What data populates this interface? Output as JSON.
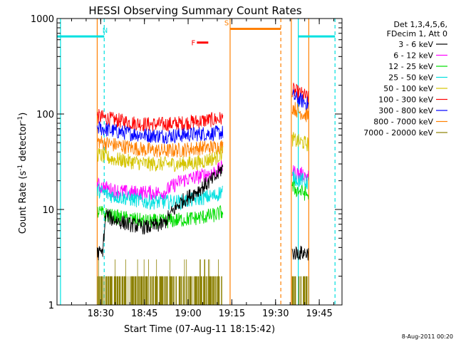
{
  "chart_data": {
    "type": "line",
    "title": "HESSI Observing Summary Count Rates",
    "xlabel": "Start Time (07-Aug-11 18:15:42)",
    "ylabel_main": "Count Rate (s",
    "ylabel_sup1": "-1",
    "ylabel_mid": " detector",
    "ylabel_sup2": "-1",
    "ylabel_end": ")",
    "y_scale": "log",
    "ylim": [
      1,
      1000
    ],
    "xlim_minutes": [
      18.25,
      19.88
    ],
    "x_ticks": [
      {
        "value": 18.5,
        "label": "18:30"
      },
      {
        "value": 18.75,
        "label": "18:45"
      },
      {
        "value": 19.0,
        "label": "19:00"
      },
      {
        "value": 19.25,
        "label": "19:15"
      },
      {
        "value": 19.5,
        "label": "19:30"
      },
      {
        "value": 19.75,
        "label": "19:45"
      }
    ],
    "y_ticks": [
      {
        "value": 1,
        "label": "1"
      },
      {
        "value": 10,
        "label": "10"
      },
      {
        "value": 100,
        "label": "100"
      },
      {
        "value": 1000,
        "label": "1000"
      }
    ],
    "legend_header": [
      "Det 1,3,4,5,6,",
      "FDecim 1, Att 0"
    ],
    "series": [
      {
        "name": "3 - 6 keV",
        "color": "#000000"
      },
      {
        "name": "6 - 12 keV",
        "color": "#ff00ff"
      },
      {
        "name": "12 - 25 keV",
        "color": "#00dd00"
      },
      {
        "name": "25 - 50 keV",
        "color": "#00e0e0"
      },
      {
        "name": "50 - 100 keV",
        "color": "#d4c400"
      },
      {
        "name": "100 - 300 keV",
        "color": "#ff0000"
      },
      {
        "name": "300 - 800 keV",
        "color": "#0000ff"
      },
      {
        "name": "800 - 7000 keV",
        "color": "#ff8000"
      },
      {
        "name": "7000 - 20000 keV",
        "color": "#8b8000"
      }
    ],
    "bands": [
      {
        "series": "100 - 300 keV",
        "segments": [
          {
            "x": [
              18.48,
              18.56,
              18.66,
              18.76,
              18.86,
              18.96,
              19.06,
              19.16,
              19.2
            ],
            "y": [
              95,
              88,
              82,
              78,
              78,
              80,
              84,
              88,
              90
            ]
          },
          {
            "x": [
              19.595,
              19.62,
              19.66,
              19.69
            ],
            "y": [
              180,
              170,
              158,
              145
            ]
          }
        ]
      },
      {
        "series": "300 - 800 keV",
        "segments": [
          {
            "x": [
              18.48,
              18.56,
              18.66,
              18.76,
              18.86,
              18.96,
              19.06,
              19.16,
              19.2
            ],
            "y": [
              72,
              67,
              63,
              60,
              59,
              60,
              62,
              63,
              64
            ]
          },
          {
            "x": [
              19.595,
              19.62,
              19.66,
              19.69
            ],
            "y": [
              155,
              145,
              135,
              125
            ]
          }
        ]
      },
      {
        "series": "800 - 7000 keV",
        "segments": [
          {
            "x": [
              18.48,
              18.56,
              18.66,
              18.76,
              18.86,
              18.96,
              19.06,
              19.16,
              19.2
            ],
            "y": [
              52,
              48,
              45,
              42,
              41,
              42,
              44,
              45,
              46
            ]
          },
          {
            "x": [
              19.595,
              19.62,
              19.66,
              19.69
            ],
            "y": [
              120,
              110,
              100,
              95
            ]
          }
        ]
      },
      {
        "series": "50 - 100 keV",
        "segments": [
          {
            "x": [
              18.48,
              18.56,
              18.66,
              18.76,
              18.86,
              18.96,
              19.06,
              19.16,
              19.2
            ],
            "y": [
              38,
              34,
              32,
              30,
              30,
              30,
              31,
              35,
              40
            ]
          },
          {
            "x": [
              19.595,
              19.62,
              19.66,
              19.69
            ],
            "y": [
              55,
              52,
              50,
              48
            ]
          }
        ]
      },
      {
        "series": "6 - 12 keV",
        "segments": [
          {
            "x": [
              18.48,
              18.56,
              18.66,
              18.76,
              18.86,
              18.9,
              18.96,
              19.06,
              19.16,
              19.2
            ],
            "y": [
              18,
              16,
              15,
              15,
              15,
              17,
              20,
              22,
              25,
              28
            ]
          },
          {
            "x": [
              19.595,
              19.62,
              19.66,
              19.69
            ],
            "y": [
              25,
              24,
              23,
              22
            ]
          }
        ]
      },
      {
        "series": "25 - 50 keV",
        "segments": [
          {
            "x": [
              18.48,
              18.56,
              18.66,
              18.76,
              18.86,
              18.96,
              19.06,
              19.16,
              19.2
            ],
            "y": [
              16,
              14,
              13,
              12,
              12,
              12,
              13,
              14,
              16
            ]
          },
          {
            "x": [
              19.595,
              19.62,
              19.66,
              19.69
            ],
            "y": [
              22,
              21,
              20,
              19
            ]
          }
        ]
      },
      {
        "series": "12 - 25 keV",
        "segments": [
          {
            "x": [
              18.48,
              18.56,
              18.66,
              18.76,
              18.86,
              18.96,
              19.06,
              19.16,
              19.2
            ],
            "y": [
              9.5,
              8.5,
              8,
              7.5,
              7.5,
              7.8,
              8.2,
              8.8,
              9.5
            ]
          },
          {
            "x": [
              19.595,
              19.62,
              19.66,
              19.69
            ],
            "y": [
              17,
              16,
              15,
              14
            ]
          }
        ]
      },
      {
        "series": "3 - 6 keV",
        "segments": [
          {
            "x": [
              18.48,
              18.51,
              18.53,
              18.56,
              18.66,
              18.76,
              18.86,
              18.9,
              18.96,
              19.06,
              19.16,
              19.2
            ],
            "y": [
              3.5,
              3.5,
              9,
              8,
              7,
              6.5,
              7,
              9,
              12,
              16,
              22,
              28
            ]
          },
          {
            "x": [
              19.595,
              19.62,
              19.66,
              19.69
            ],
            "y": [
              3.5,
              3.5,
              3.5,
              3.5
            ]
          }
        ]
      }
    ],
    "noise_series": {
      "series": "7000 - 20000 keV",
      "levels": [
        1,
        2,
        3
      ],
      "x_ranges": [
        [
          18.48,
          19.2
        ],
        [
          19.595,
          19.69
        ]
      ]
    },
    "annotations": [
      {
        "label": "N",
        "color": "#00e0e0",
        "level": 650,
        "x": [
          18.25,
          18.52
        ],
        "label_x": 18.525
      },
      {
        "label": "N",
        "color": "#00e0e0",
        "level": 650,
        "x": [
          19.63,
          19.84
        ]
      },
      {
        "label": "S",
        "color": "#ff8000",
        "level": 780,
        "x": [
          19.24,
          19.53
        ],
        "label_x": 19.22
      },
      {
        "label": "F",
        "color": "#ff0000",
        "level": 560,
        "x": [
          19.05,
          19.14
        ],
        "label_x": 19.03,
        "dashed": true
      }
    ],
    "markers": [
      {
        "x": 18.27,
        "color": "#00e0e0",
        "style": "solid"
      },
      {
        "x": 18.52,
        "color": "#00e0e0",
        "style": "dashed"
      },
      {
        "x": 19.63,
        "color": "#00e0e0",
        "style": "solid"
      },
      {
        "x": 19.84,
        "color": "#00e0e0",
        "style": "dashed"
      },
      {
        "x": 18.48,
        "color": "#ff8000",
        "style": "solid"
      },
      {
        "x": 19.24,
        "color": "#ff8000",
        "style": "solid"
      },
      {
        "x": 19.53,
        "color": "#ff8000",
        "style": "dashed"
      },
      {
        "x": 19.59,
        "color": "#ff8000",
        "style": "solid"
      },
      {
        "x": 19.69,
        "color": "#ff8000",
        "style": "solid"
      }
    ],
    "timestamp": "8-Aug-2011 00:20",
    "grid": false,
    "legend_position": "right"
  }
}
